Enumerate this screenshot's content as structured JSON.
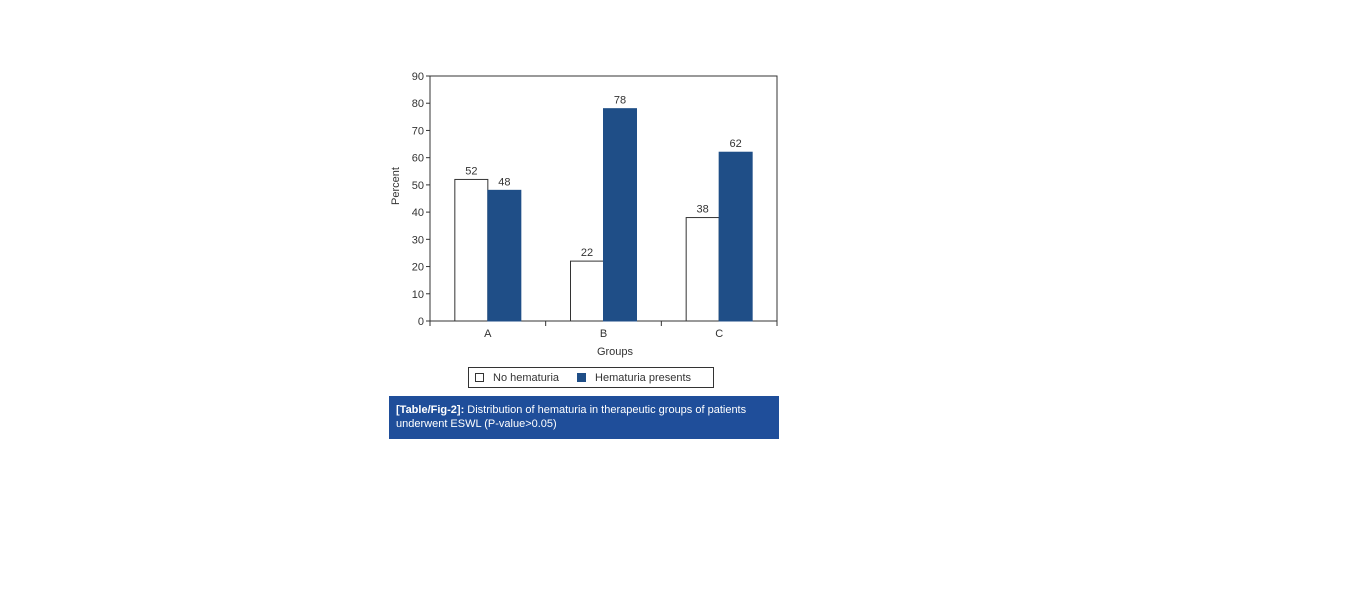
{
  "chart_data": {
    "type": "bar",
    "categories": [
      "A",
      "B",
      "C"
    ],
    "series": [
      {
        "name": "No hematuria",
        "values": [
          52,
          22,
          38
        ],
        "color": "#ffffff"
      },
      {
        "name": "Hematuria presents",
        "values": [
          48,
          78,
          62
        ],
        "color": "#1f4e87"
      }
    ],
    "xlabel": "Groups",
    "ylabel": "Percent",
    "ylim": [
      0,
      90
    ],
    "yticks": [
      0,
      10,
      20,
      30,
      40,
      50,
      60,
      70,
      80,
      90
    ],
    "data_labels": true,
    "grid": false,
    "legend": "bottom"
  },
  "caption": {
    "label": "[Table/Fig-2]:",
    "text": " Distribution of hematuria in therapeutic groups of patients underwent ESWL (P-value>0.05)",
    "background": "#1f4e9a"
  }
}
